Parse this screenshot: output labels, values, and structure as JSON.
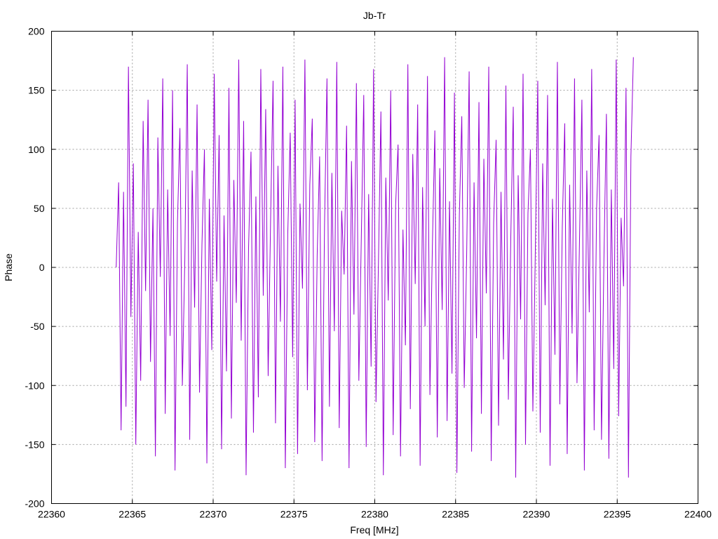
{
  "chart_data": {
    "type": "line",
    "title": "Jb-Tr",
    "xlabel": "Freq [MHz]",
    "ylabel": "Phase",
    "xlim": [
      22360,
      22400
    ],
    "ylim": [
      -200,
      200
    ],
    "xticks": [
      22360,
      22365,
      22370,
      22375,
      22380,
      22385,
      22390,
      22395,
      22400
    ],
    "yticks": [
      200,
      150,
      100,
      50,
      0,
      -50,
      -100,
      -150,
      -200
    ],
    "grid": true,
    "line_color": "#9400d3",
    "series": [
      {
        "x_start": 22364.0,
        "x_end": 22396.0,
        "values": [
          0,
          72,
          -138,
          64,
          -118,
          170,
          -42,
          88,
          -150,
          30,
          -96,
          124,
          -20,
          142,
          -80,
          50,
          -160,
          110,
          -8,
          160,
          -124,
          66,
          -58,
          150,
          -172,
          38,
          118,
          -100,
          6,
          172,
          -146,
          82,
          -34,
          138,
          -106,
          20,
          100,
          -166,
          58,
          -70,
          164,
          -12,
          112,
          -154,
          44,
          -88,
          152,
          -128,
          74,
          -30,
          176,
          -62,
          124,
          -176,
          16,
          98,
          -140,
          60,
          -110,
          168,
          -24,
          134,
          -92,
          40,
          158,
          -132,
          86,
          -46,
          170,
          -170,
          28,
          114,
          -76,
          142,
          -158,
          54,
          -18,
          176,
          -104,
          70,
          126,
          -148,
          10,
          94,
          -164,
          36,
          160,
          -118,
          80,
          -54,
          174,
          -136,
          48,
          -6,
          120,
          -170,
          90,
          -40,
          156,
          -96,
          24,
          146,
          -152,
          62,
          -84,
          168,
          -114,
          4,
          132,
          -176,
          76,
          -28,
          150,
          -142,
          52,
          104,
          -160,
          32,
          -66,
          172,
          -120,
          96,
          -14,
          138,
          -168,
          68,
          -50,
          162,
          -108,
          18,
          116,
          -144,
          84,
          -36,
          178,
          -130,
          56,
          -90,
          148,
          -174,
          44,
          128,
          -102,
          12,
          166,
          -156,
          72,
          -60,
          140,
          -124,
          92,
          -22,
          170,
          -164,
          38,
          108,
          -134,
          64,
          -78,
          154,
          -112,
          26,
          136,
          -178,
          78,
          -44,
          164,
          -150,
          46,
          100,
          -122,
          14,
          158,
          -140,
          88,
          -32,
          146,
          -168,
          58,
          -74,
          174,
          -116,
          34,
          122,
          -158,
          70,
          -56,
          160,
          -98,
          20,
          142,
          -172,
          82,
          -38,
          168,
          -138,
          50,
          112,
          -146,
          8,
          130,
          -162,
          66,
          -86,
          176,
          -126,
          42,
          -16,
          152,
          -178,
          94,
          178
        ]
      }
    ]
  }
}
